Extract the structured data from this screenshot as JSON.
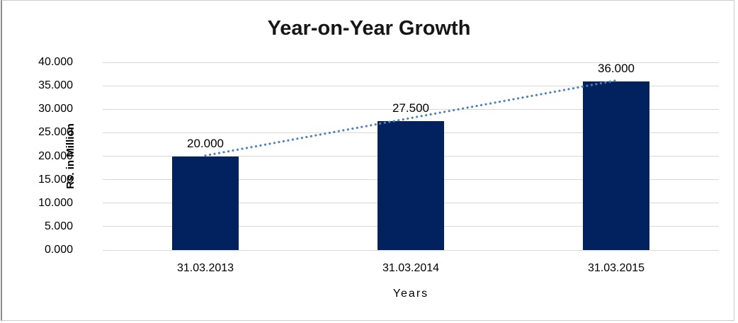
{
  "chart_data": {
    "type": "bar",
    "title": "Year-on-Year Growth",
    "xlabel": "Years",
    "ylabel": "Rs. in Million",
    "categories": [
      "31.03.2013",
      "31.03.2014",
      "31.03.2015"
    ],
    "values": [
      20.0,
      27.5,
      36.0
    ],
    "data_labels": [
      "20.000",
      "27.500",
      "36.000"
    ],
    "y_ticks": [
      "0.000",
      "5.000",
      "10.000",
      "15.000",
      "20.000",
      "25.000",
      "30.000",
      "35.000",
      "40.000"
    ],
    "y_tick_step": 5,
    "ylim": [
      0,
      40
    ],
    "grid": true,
    "legend": false,
    "trendline": true,
    "colors": {
      "bar": "#02215F",
      "trendline": "#4F81BD",
      "gridline": "#D9D9D9",
      "title_text": "#161616",
      "axis_text": "#000000",
      "frame_border": "#CCCCCC"
    }
  }
}
